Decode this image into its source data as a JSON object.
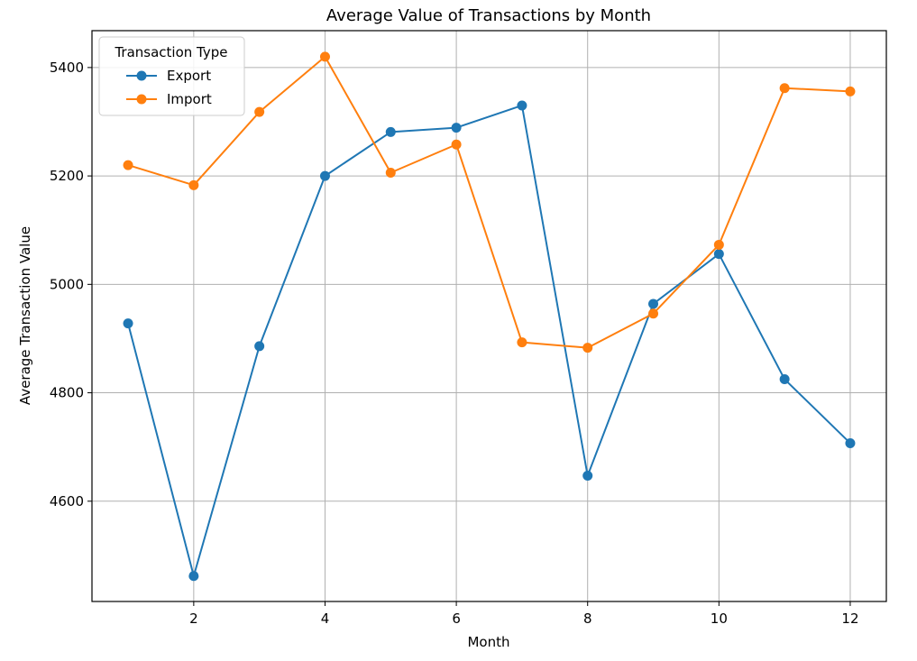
{
  "chart_data": {
    "type": "line",
    "title": "Average Value of Transactions by Month",
    "xlabel": "Month",
    "ylabel": "Average Transaction Value",
    "xlim": [
      0.45,
      12.55
    ],
    "ylim": [
      4415,
      5468
    ],
    "xticks": [
      2,
      4,
      6,
      8,
      10,
      12
    ],
    "yticks": [
      4600,
      4800,
      5000,
      5200,
      5400
    ],
    "grid": true,
    "legend": {
      "title": "Transaction Type",
      "placement": "top-left"
    },
    "x": [
      1,
      2,
      3,
      4,
      5,
      6,
      7,
      8,
      9,
      10,
      11,
      12
    ],
    "series": [
      {
        "name": "Export",
        "color": "#1f77b4",
        "values": [
          4928,
          4462,
          4886,
          5200,
          5281,
          5289,
          5330,
          4647,
          4964,
          5056,
          4825,
          4707
        ]
      },
      {
        "name": "Import",
        "color": "#ff7f0e",
        "values": [
          5220,
          5183,
          5318,
          5420,
          5206,
          5258,
          4893,
          4883,
          4946,
          5073,
          5362,
          5356
        ]
      }
    ]
  }
}
